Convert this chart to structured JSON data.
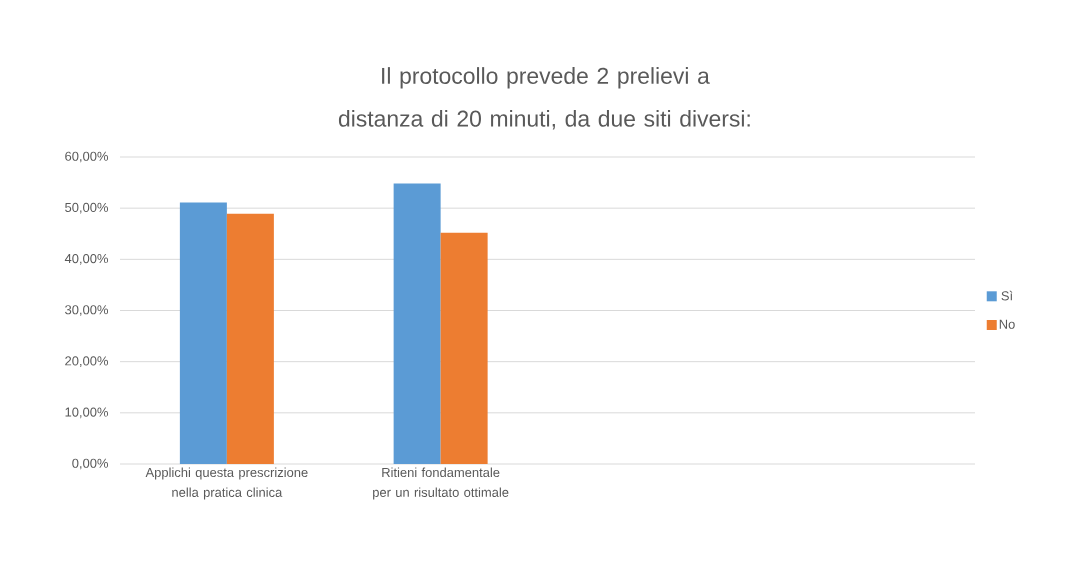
{
  "chart_data": {
    "type": "bar",
    "title": "Il protocollo prevede 2 prelievi a distanza di 20 minuti, da due siti diversi:",
    "categories": [
      "Applichi questa prescrizione nella pratica clinica",
      "Ritieni fondamentale per un risultato ottimale",
      null,
      null
    ],
    "series": [
      {
        "name": "Sì",
        "color": "#5b9bd5",
        "values": [
          51.1,
          54.8,
          null,
          null
        ]
      },
      {
        "name": "No",
        "color": "#ed7d31",
        "values": [
          48.9,
          45.2,
          null,
          null
        ]
      }
    ],
    "ylim": [
      0,
      60
    ],
    "yticks": [
      {
        "value": 0,
        "label": "0,00%"
      },
      {
        "value": 10,
        "label": "10,00%"
      },
      {
        "value": 20,
        "label": "20,00%"
      },
      {
        "value": 30,
        "label": "30,00%"
      },
      {
        "value": 40,
        "label": "40,00%"
      },
      {
        "value": 50,
        "label": "50,00%"
      },
      {
        "value": 60,
        "label": "60,00%"
      }
    ],
    "grid": "y",
    "legend": "right"
  }
}
